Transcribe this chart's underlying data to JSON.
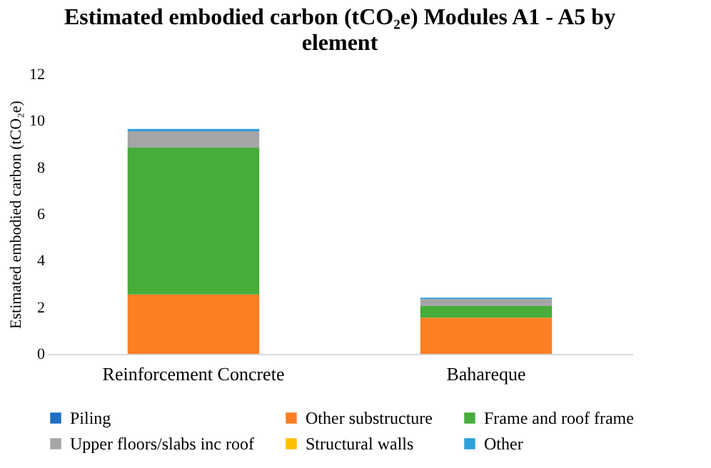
{
  "chart_data": {
    "type": "bar",
    "title": "Estimated embodied carbon (tCO₂e) Modules A1 - A5 by element",
    "ylabel": "Estimated embodied carbon (tCO₂e)",
    "categories": [
      "Reinforcement Concrete",
      "Bahareque"
    ],
    "stacked": true,
    "ylim": [
      0,
      12
    ],
    "yticks": [
      0,
      2,
      4,
      6,
      8,
      10,
      12
    ],
    "grid": false,
    "legend": "bottom",
    "series": [
      {
        "name": "Piling",
        "color": "#1f6fc4",
        "values": [
          0,
          0
        ]
      },
      {
        "name": "Other substructure",
        "color": "#fd7f23",
        "values": [
          2.55,
          1.55
        ]
      },
      {
        "name": "Frame and roof frame",
        "color": "#46ac3a",
        "values": [
          6.3,
          0.5
        ]
      },
      {
        "name": "Upper floors/slabs inc roof",
        "color": "#a5a5a5",
        "values": [
          0.7,
          0.3
        ]
      },
      {
        "name": "Structural walls",
        "color": "#ffc000",
        "values": [
          0,
          0
        ]
      },
      {
        "name": "Other",
        "color": "#2e9fd8",
        "values": [
          0.1,
          0.06
        ]
      }
    ]
  }
}
